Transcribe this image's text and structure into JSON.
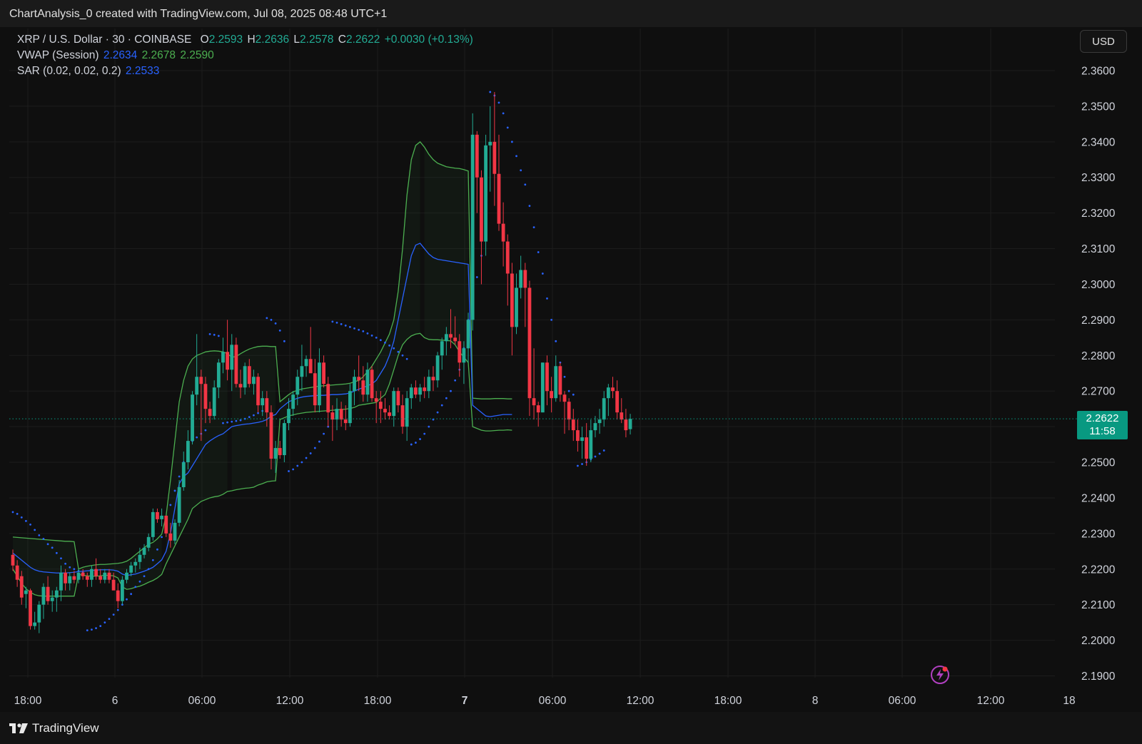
{
  "caption": "ChartAnalysis_0 created with TradingView.com, Jul 08, 2025 08:48 UTC+1",
  "brand": "TradingView",
  "currency_button": "USD",
  "legend": {
    "symbol": "XRP / U.S. Dollar · 30 · COINBASE",
    "o_label": "O",
    "o_value": "2.2593",
    "h_label": "H",
    "h_value": "2.2636",
    "l_label": "L",
    "l_value": "2.2578",
    "c_label": "C",
    "c_value": "2.2622",
    "change": "+0.0030 (+0.13%)",
    "vwap_label": "VWAP (Session)",
    "vwap_values": [
      "2.2634",
      "2.2678",
      "2.2590"
    ],
    "sar_label": "SAR (0.02, 0.02, 0.2)",
    "sar_value": "2.2533"
  },
  "last_price": {
    "price": "2.2622",
    "countdown": "11:58"
  },
  "colors": {
    "up": "#22ab94",
    "down": "#f23645",
    "vwap": "#2962ff",
    "bands": "#4caf50",
    "sar": "#2962ff",
    "badge": "#089981"
  },
  "chart_data": {
    "type": "candlestick",
    "timeframe": "30",
    "ylim": [
      2.186,
      2.368
    ],
    "y_ticks": [
      "2.3600",
      "2.3500",
      "2.3400",
      "2.3300",
      "2.3200",
      "2.3100",
      "2.3000",
      "2.2900",
      "2.2800",
      "2.2700",
      "2.2600",
      "2.2500",
      "2.2400",
      "2.2300",
      "2.2200",
      "2.2100",
      "2.2000",
      "2.1900"
    ],
    "x_ticks": [
      "18:00",
      "6",
      "06:00",
      "12:00",
      "18:00",
      "7",
      "06:00",
      "12:00",
      "18:00",
      "8",
      "06:00",
      "12:00",
      "18"
    ],
    "x_tick_bold": [
      false,
      false,
      false,
      false,
      false,
      true,
      false,
      false,
      false,
      false,
      false,
      false,
      false
    ],
    "candles": [
      [
        2.224,
        2.2255,
        2.2195,
        2.221
      ],
      [
        2.221,
        2.2225,
        2.215,
        2.217
      ],
      [
        2.218,
        2.2195,
        2.21,
        2.212
      ],
      [
        2.213,
        2.215,
        2.209,
        2.214
      ],
      [
        2.214,
        2.2145,
        2.203,
        2.204
      ],
      [
        2.204,
        2.208,
        2.203,
        2.205
      ],
      [
        2.205,
        2.211,
        2.202,
        2.21
      ],
      [
        2.21,
        2.216,
        2.206,
        2.215
      ],
      [
        2.215,
        2.218,
        2.21,
        2.211
      ],
      [
        2.211,
        2.214,
        2.208,
        2.212
      ],
      [
        2.212,
        2.215,
        2.208,
        2.214
      ],
      [
        2.214,
        2.221,
        2.211,
        2.219
      ],
      [
        2.219,
        2.22,
        2.214,
        2.216
      ],
      [
        2.216,
        2.219,
        2.214,
        2.218
      ],
      [
        2.218,
        2.2195,
        2.216,
        2.217
      ],
      [
        2.217,
        2.22,
        2.216,
        2.219
      ],
      [
        2.219,
        2.22,
        2.217,
        2.218
      ],
      [
        2.218,
        2.219,
        2.215,
        2.217
      ],
      [
        2.217,
        2.221,
        2.215,
        2.22
      ],
      [
        2.22,
        2.223,
        2.217,
        2.218
      ],
      [
        2.218,
        2.22,
        2.216,
        2.217
      ],
      [
        2.217,
        2.22,
        2.216,
        2.219
      ],
      [
        2.219,
        2.22,
        2.216,
        2.217
      ],
      [
        2.217,
        2.219,
        2.215,
        2.214
      ],
      [
        2.214,
        2.216,
        2.209,
        2.211
      ],
      [
        2.211,
        2.218,
        2.21,
        2.217
      ],
      [
        2.217,
        2.22,
        2.216,
        2.219
      ],
      [
        2.219,
        2.222,
        2.218,
        2.221
      ],
      [
        2.221,
        2.223,
        2.219,
        2.222
      ],
      [
        2.222,
        2.226,
        2.22,
        2.224
      ],
      [
        2.224,
        2.227,
        2.223,
        2.226
      ],
      [
        2.226,
        2.23,
        2.225,
        2.229
      ],
      [
        2.229,
        2.237,
        2.228,
        2.236
      ],
      [
        2.236,
        2.237,
        2.233,
        2.234
      ],
      [
        2.234,
        2.237,
        2.232,
        2.235
      ],
      [
        2.235,
        2.235,
        2.229,
        2.23
      ],
      [
        2.23,
        2.233,
        2.226,
        2.228
      ],
      [
        2.228,
        2.234,
        2.227,
        2.233
      ],
      [
        2.233,
        2.245,
        2.232,
        2.243
      ],
      [
        2.243,
        2.253,
        2.242,
        2.25
      ],
      [
        2.25,
        2.259,
        2.248,
        2.256
      ],
      [
        2.256,
        2.27,
        2.255,
        2.269
      ],
      [
        2.269,
        2.286,
        2.266,
        2.274
      ],
      [
        2.274,
        2.276,
        2.256,
        2.272
      ],
      [
        2.272,
        2.274,
        2.261,
        2.265
      ],
      [
        2.265,
        2.267,
        2.261,
        2.263
      ],
      [
        2.263,
        2.273,
        2.262,
        2.271
      ],
      [
        2.271,
        2.279,
        2.268,
        2.278
      ],
      [
        2.278,
        2.285,
        2.275,
        2.281
      ],
      [
        2.281,
        2.29,
        2.273,
        2.276
      ],
      [
        2.276,
        2.286,
        2.27,
        2.283
      ],
      [
        2.283,
        2.285,
        2.271,
        2.272
      ],
      [
        2.272,
        2.276,
        2.268,
        2.271
      ],
      [
        2.271,
        2.278,
        2.269,
        2.277
      ],
      [
        2.277,
        2.279,
        2.271,
        2.272
      ],
      [
        2.272,
        2.276,
        2.269,
        2.274
      ],
      [
        2.274,
        2.275,
        2.264,
        2.266
      ],
      [
        2.266,
        2.27,
        2.263,
        2.268
      ],
      [
        2.268,
        2.27,
        2.26,
        2.264
      ],
      [
        2.264,
        2.266,
        2.248,
        2.251
      ],
      [
        2.251,
        2.256,
        2.247,
        2.254
      ],
      [
        2.254,
        2.256,
        2.251,
        2.252
      ],
      [
        2.252,
        2.262,
        2.25,
        2.261
      ],
      [
        2.261,
        2.268,
        2.259,
        2.265
      ],
      [
        2.265,
        2.27,
        2.263,
        2.269
      ],
      [
        2.269,
        2.276,
        2.266,
        2.274
      ],
      [
        2.274,
        2.283,
        2.27,
        2.277
      ],
      [
        2.277,
        2.28,
        2.274,
        2.279
      ],
      [
        2.279,
        2.288,
        2.276,
        2.275
      ],
      [
        2.275,
        2.279,
        2.264,
        2.266
      ],
      [
        2.266,
        2.282,
        2.264,
        2.278
      ],
      [
        2.278,
        2.28,
        2.271,
        2.272
      ],
      [
        2.272,
        2.274,
        2.26,
        2.264
      ],
      [
        2.264,
        2.266,
        2.256,
        2.262
      ],
      [
        2.262,
        2.268,
        2.259,
        2.265
      ],
      [
        2.265,
        2.267,
        2.26,
        2.262
      ],
      [
        2.262,
        2.266,
        2.259,
        2.261
      ],
      [
        2.261,
        2.272,
        2.26,
        2.27
      ],
      [
        2.27,
        2.276,
        2.266,
        2.274
      ],
      [
        2.274,
        2.28,
        2.27,
        2.273
      ],
      [
        2.273,
        2.277,
        2.267,
        2.269
      ],
      [
        2.269,
        2.278,
        2.267,
        2.276
      ],
      [
        2.276,
        2.277,
        2.267,
        2.268
      ],
      [
        2.268,
        2.27,
        2.261,
        2.267
      ],
      [
        2.267,
        2.27,
        2.261,
        2.265
      ],
      [
        2.265,
        2.268,
        2.262,
        2.264
      ],
      [
        2.264,
        2.266,
        2.262,
        2.263
      ],
      [
        2.263,
        2.271,
        2.26,
        2.27
      ],
      [
        2.27,
        2.271,
        2.264,
        2.266
      ],
      [
        2.266,
        2.269,
        2.258,
        2.26
      ],
      [
        2.26,
        2.27,
        2.256,
        2.268
      ],
      [
        2.268,
        2.272,
        2.265,
        2.271
      ],
      [
        2.271,
        2.273,
        2.268,
        2.269
      ],
      [
        2.269,
        2.272,
        2.267,
        2.271
      ],
      [
        2.271,
        2.274,
        2.268,
        2.27
      ],
      [
        2.27,
        2.276,
        2.268,
        2.274
      ],
      [
        2.274,
        2.277,
        2.27,
        2.273
      ],
      [
        2.273,
        2.281,
        2.271,
        2.28
      ],
      [
        2.28,
        2.285,
        2.276,
        2.284
      ],
      [
        2.284,
        2.288,
        2.28,
        2.286
      ],
      [
        2.286,
        2.293,
        2.282,
        2.285
      ],
      [
        2.285,
        2.291,
        2.283,
        2.284
      ],
      [
        2.284,
        2.286,
        2.274,
        2.278
      ],
      [
        2.278,
        2.284,
        2.272,
        2.282
      ],
      [
        2.282,
        2.292,
        2.278,
        2.29
      ],
      [
        2.29,
        2.348,
        2.287,
        2.342
      ],
      [
        2.342,
        2.343,
        2.32,
        2.33
      ],
      [
        2.33,
        2.332,
        2.3,
        2.312
      ],
      [
        2.312,
        2.342,
        2.308,
        2.339
      ],
      [
        2.339,
        2.35,
        2.326,
        2.34
      ],
      [
        2.34,
        2.354,
        2.322,
        2.331
      ],
      [
        2.331,
        2.342,
        2.315,
        2.317
      ],
      [
        2.317,
        2.323,
        2.305,
        2.312
      ],
      [
        2.312,
        2.314,
        2.294,
        2.303
      ],
      [
        2.303,
        2.306,
        2.28,
        2.288
      ],
      [
        2.288,
        2.303,
        2.286,
        2.299
      ],
      [
        2.299,
        2.308,
        2.296,
        2.304
      ],
      [
        2.304,
        2.306,
        2.288,
        2.299
      ],
      [
        2.299,
        2.301,
        2.263,
        2.268
      ],
      [
        2.268,
        2.282,
        2.262,
        2.266
      ],
      [
        2.266,
        2.267,
        2.26,
        2.264
      ],
      [
        2.264,
        2.278,
        2.264,
        2.278
      ],
      [
        2.278,
        2.28,
        2.266,
        2.27
      ],
      [
        2.27,
        2.274,
        2.264,
        2.268
      ],
      [
        2.268,
        2.28,
        2.267,
        2.277
      ],
      [
        2.277,
        2.278,
        2.267,
        2.269
      ],
      [
        2.269,
        2.27,
        2.258,
        2.267
      ],
      [
        2.267,
        2.268,
        2.259,
        2.262
      ],
      [
        2.262,
        2.265,
        2.256,
        2.259
      ],
      [
        2.259,
        2.262,
        2.253,
        2.256
      ],
      [
        2.256,
        2.26,
        2.251,
        2.257
      ],
      [
        2.257,
        2.261,
        2.249,
        2.251
      ],
      [
        2.251,
        2.262,
        2.25,
        2.259
      ],
      [
        2.259,
        2.263,
        2.257,
        2.261
      ],
      [
        2.261,
        2.265,
        2.258,
        2.262
      ],
      [
        2.262,
        2.27,
        2.26,
        2.268
      ],
      [
        2.268,
        2.272,
        2.263,
        2.271
      ],
      [
        2.271,
        2.274,
        2.268,
        2.27
      ],
      [
        2.27,
        2.273,
        2.262,
        2.264
      ],
      [
        2.264,
        2.268,
        2.261,
        2.262
      ],
      [
        2.262,
        2.265,
        2.257,
        2.259
      ],
      [
        2.2593,
        2.2636,
        2.2578,
        2.2622
      ]
    ],
    "vwap": [
      2.2245,
      2.2235,
      2.2225,
      2.2215,
      2.2205,
      2.2198,
      2.2194,
      2.2192,
      2.2191,
      2.219,
      2.2189,
      2.2189,
      2.2189,
      2.219,
      2.2191,
      2.2193,
      2.2194,
      2.2195,
      2.2196,
      2.2197,
      2.2198,
      2.2198,
      2.2198,
      2.2197,
      2.2194,
      2.2186,
      2.2182,
      2.2184,
      2.2186,
      2.219,
      2.2194,
      2.2199,
      2.2205,
      2.2215,
      2.2226,
      2.225,
      2.23,
      2.237,
      2.244,
      2.246,
      2.247,
      2.249,
      2.251,
      2.253,
      2.255,
      2.256,
      2.2568,
      2.2575,
      2.258,
      2.259,
      2.26,
      2.2603,
      2.2605,
      2.2607,
      2.2608,
      2.261,
      2.2612,
      2.2615,
      2.262,
      2.263,
      2.2634,
      2.265,
      2.266,
      2.267,
      2.2675,
      2.268,
      2.2683,
      2.2685,
      2.2686,
      2.2687,
      2.2688,
      2.2688,
      2.2689,
      2.269,
      2.269,
      2.2691,
      2.2692,
      2.2695,
      2.27,
      2.2705,
      2.271,
      2.2715,
      2.272,
      2.273,
      2.275,
      2.277,
      2.28,
      2.284,
      2.29,
      2.296,
      2.302,
      2.308,
      2.311,
      2.3115,
      2.31,
      2.3085,
      2.3075,
      2.307,
      2.3068,
      2.3066,
      2.3064,
      2.3062,
      2.306,
      2.3058,
      2.3056,
      2.266,
      2.265,
      2.264,
      2.263,
      2.2628,
      2.263,
      2.2632,
      2.2634,
      2.2634,
      2.2634
    ],
    "vwap_upper": [
      2.229,
      2.2289,
      2.2288,
      2.2287,
      2.2286,
      2.2285,
      2.2284,
      2.2283,
      2.2282,
      2.2281,
      2.228,
      2.2279,
      2.2278,
      2.2278,
      2.2277,
      2.22,
      2.2205,
      2.2208,
      2.221,
      2.2212,
      2.2213,
      2.2213,
      2.2214,
      2.2215,
      2.2216,
      2.2218,
      2.2222,
      2.223,
      2.224,
      2.225,
      2.226,
      2.227,
      2.2275,
      2.2285,
      2.2298,
      2.235,
      2.245,
      2.256,
      2.267,
      2.273,
      2.277,
      2.279,
      2.28,
      2.2805,
      2.281,
      2.2812,
      2.2813,
      2.2812,
      2.281,
      2.2805,
      2.2795,
      2.2797,
      2.2805,
      2.2812,
      2.2818,
      2.2822,
      2.2825,
      2.2826,
      2.2826,
      2.2825,
      2.2825,
      2.267,
      2.268,
      2.269,
      2.2698,
      2.2702,
      2.2706,
      2.2708,
      2.271,
      2.2712,
      2.2714,
      2.2715,
      2.2716,
      2.2717,
      2.2718,
      2.2719,
      2.272,
      2.2722,
      2.2726,
      2.273,
      2.274,
      2.2755,
      2.277,
      2.279,
      2.281,
      2.2835,
      2.286,
      2.29,
      2.298,
      2.31,
      2.325,
      2.335,
      2.339,
      2.34,
      2.3385,
      2.3365,
      2.335,
      2.334,
      2.3335,
      2.333,
      2.3328,
      2.3326,
      2.3325,
      2.3322,
      2.3318,
      2.268,
      2.2679,
      2.2678,
      2.2678,
      2.2678,
      2.2679,
      2.2679,
      2.2679,
      2.2678,
      2.2678
    ],
    "vwap_lower": [
      2.22,
      2.218,
      2.216,
      2.2145,
      2.2135,
      2.2128,
      2.2125,
      2.2124,
      2.2124,
      2.2124,
      2.2124,
      2.2124,
      2.2124,
      2.2124,
      2.2124,
      2.2185,
      2.2183,
      2.2181,
      2.218,
      2.218,
      2.2181,
      2.2183,
      2.2182,
      2.2181,
      2.2175,
      2.215,
      2.2143,
      2.2145,
      2.2149,
      2.2152,
      2.2157,
      2.2163,
      2.2168,
      2.2175,
      2.2185,
      2.2215,
      2.224,
      2.2265,
      2.229,
      2.2315,
      2.234,
      2.237,
      2.238,
      2.239,
      2.2395,
      2.24,
      2.2403,
      2.2405,
      2.241,
      2.2418,
      2.242,
      2.2423,
      2.2425,
      2.2427,
      2.2428,
      2.243,
      2.2436,
      2.244,
      2.2445,
      2.2447,
      2.2448,
      2.262,
      2.2625,
      2.263,
      2.2633,
      2.2636,
      2.2638,
      2.264,
      2.2641,
      2.2642,
      2.2643,
      2.2644,
      2.2645,
      2.2646,
      2.2647,
      2.2648,
      2.2649,
      2.2651,
      2.2654,
      2.266,
      2.2662,
      2.2664,
      2.2666,
      2.2668,
      2.268,
      2.269,
      2.272,
      2.276,
      2.28,
      2.283,
      2.2845,
      2.2855,
      2.286,
      2.2862,
      2.285,
      2.2845,
      2.2844,
      2.2844,
      2.2843,
      2.2842,
      2.2841,
      2.283,
      2.281,
      2.2795,
      2.278,
      2.26,
      2.2595,
      2.259,
      2.2588,
      2.2588,
      2.2589,
      2.259,
      2.259,
      2.2591,
      2.259
    ],
    "vwap_anchor_bar": [
      0,
      15,
      35,
      50,
      61,
      79,
      94,
      105
    ],
    "sar": [
      2.236,
      2.2355,
      2.2345,
      2.2335,
      2.2325,
      2.231,
      2.2295,
      2.2285,
      2.227,
      2.226,
      2.2245,
      2.223,
      2.2215,
      2.2205,
      2.22,
      2.2195,
      2.219,
      2.2028,
      2.203,
      2.2034,
      2.204,
      2.205,
      2.206,
      2.2072,
      2.2085,
      2.21,
      2.2115,
      2.213,
      2.215,
      2.2165,
      2.218,
      2.22,
      2.2225,
      2.2255,
      2.229,
      2.234,
      2.238,
      2.242,
      2.246,
      2.25,
      2.254,
      2.256,
      2.257,
      2.258,
      2.259,
      2.286,
      2.2858,
      2.2855,
      2.261,
      2.2612,
      2.2614,
      2.2616,
      2.2618,
      2.2622,
      2.2627,
      2.2632,
      2.2638,
      2.2644,
      2.2905,
      2.29,
      2.289,
      2.287,
      2.284,
      2.2475,
      2.248,
      2.249,
      2.25,
      2.2512,
      2.2525,
      2.254,
      2.2558,
      2.258,
      2.26,
      2.2895,
      2.2892,
      2.2888,
      2.2884,
      2.288,
      2.2876,
      2.2872,
      2.2868,
      2.2862,
      2.2856,
      2.285,
      2.2843,
      2.2836,
      2.2828,
      2.282,
      2.281,
      2.28,
      2.279,
      2.255,
      2.2555,
      2.2565,
      2.258,
      2.26,
      2.262,
      2.264,
      2.266,
      2.268,
      2.27,
      2.273,
      2.276,
      2.282,
      2.29,
      2.296,
      2.302,
      2.308,
      2.316,
      2.354,
      2.353,
      2.351,
      2.348,
      2.344,
      2.34,
      2.336,
      2.332,
      2.328,
      2.322,
      2.316,
      2.309,
      2.303,
      2.296,
      2.29,
      2.284,
      2.278,
      2.274,
      2.27,
      2.269,
      2.249,
      2.2495,
      2.25,
      2.2508,
      2.2516,
      2.2524,
      2.2533
    ]
  }
}
